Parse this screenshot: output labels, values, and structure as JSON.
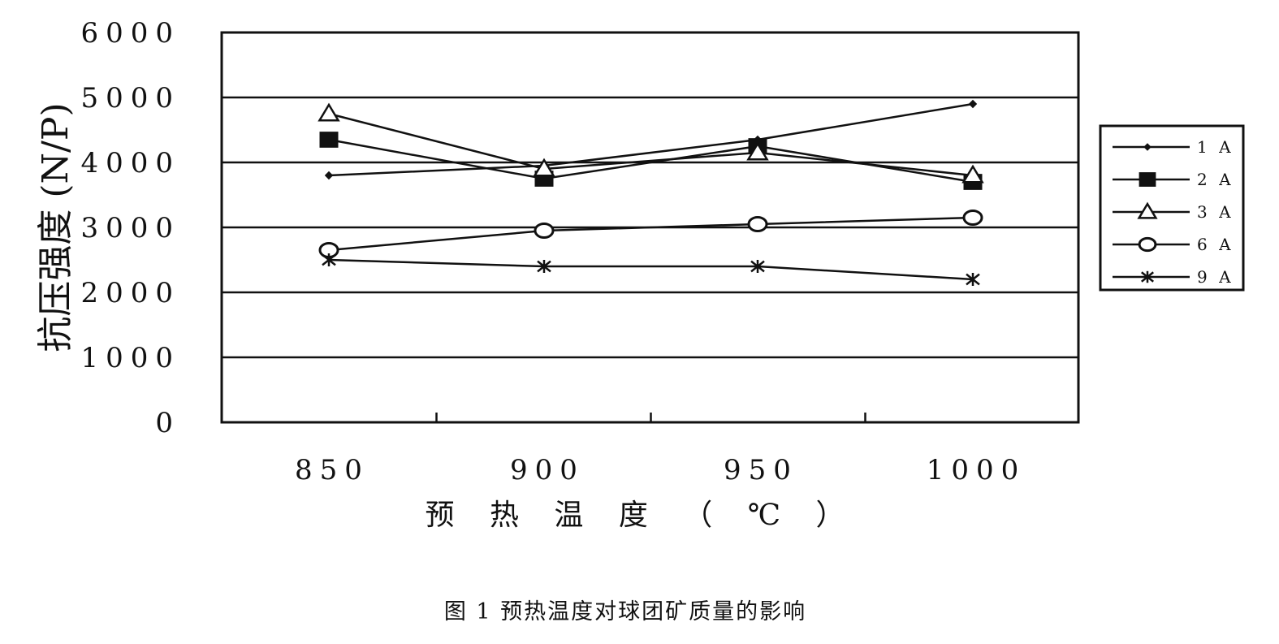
{
  "caption": "图 1   预热温度对球团矿质量的影响",
  "chart_data": {
    "type": "line",
    "title": "",
    "xlabel": "预 热 温 度 （ ℃ ）",
    "ylabel": "抗压强度 (N/P)",
    "categories": [
      "850",
      "900",
      "950",
      "1000"
    ],
    "ylim": [
      0,
      6000
    ],
    "yticks": [
      "0",
      "1000",
      "2000",
      "3000",
      "4000",
      "5000",
      "6000"
    ],
    "grid": true,
    "legend_position": "right",
    "series": [
      {
        "name": "1 A",
        "marker": "small-diamond",
        "values": [
          3800,
          3950,
          4350,
          4900
        ]
      },
      {
        "name": "2 A",
        "marker": "filled-square",
        "values": [
          4350,
          3750,
          4250,
          3700
        ]
      },
      {
        "name": "3 A",
        "marker": "open-triangle",
        "values": [
          4750,
          3900,
          4150,
          3800
        ]
      },
      {
        "name": "6 A",
        "marker": "open-circle",
        "values": [
          2650,
          2950,
          3050,
          3150
        ]
      },
      {
        "name": "9 A",
        "marker": "star",
        "values": [
          2500,
          2400,
          2400,
          2200
        ]
      }
    ]
  },
  "colors": {
    "ink": "#111111",
    "background": "#ffffff"
  }
}
